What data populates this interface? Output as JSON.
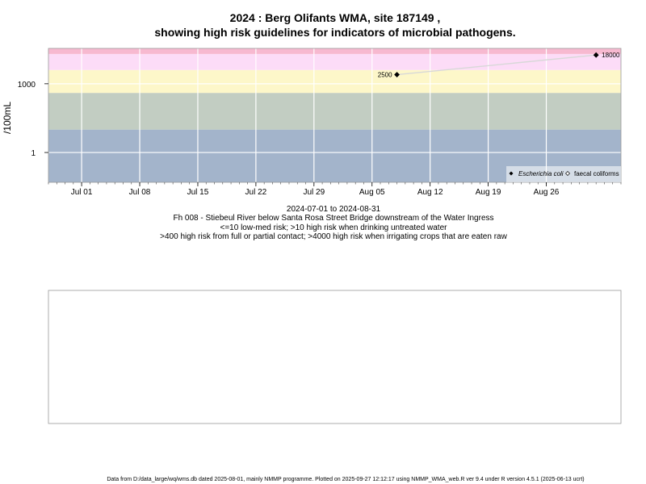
{
  "title_line1": "2024 : Berg Olifants WMA, site 187149 ,",
  "title_line2": "showing high risk guidelines for indicators of microbial pathogens.",
  "subtitle": {
    "date_range": "2024-07-01 to 2024-08-31",
    "site": "Fh 008 - Stiebeul River below Santa Rosa Street Bridge downstream of the Water Ingress",
    "guide1": "<=10 low-med risk; >10 high risk when drinking untreated water",
    "guide2": ">400 high risk from full or partial contact; >4000 high risk when irrigating crops that are eaten raw"
  },
  "footer": "Data from D:/data_large/wq/wms.db dated 2025-08-01, mainly NMMP programme. Plotted on 2025-09-27 12:12:17 using NMMP_WMA_web.R ver 9.4 under R version 4.5.1 (2025-06-13 ucrt)",
  "colors": {
    "band_low": "#a3b4cb",
    "band_lowmed": "#c2cdc2",
    "band_high": "#fdf7c9",
    "band_veryhigh": "#fcdcf7",
    "band_top": "#f7b9d0",
    "series_line": "#d8d8d8",
    "grid": "#ffffff"
  },
  "chart_data": {
    "type": "scatter",
    "ylabel": "/100mL",
    "y_scale": "log10",
    "ylim": [
      0.05,
      35000
    ],
    "xlim": [
      "2024-06-27",
      "2024-09-04"
    ],
    "x_ticks": [
      {
        "date": "2024-07-01",
        "label": "Jul 01"
      },
      {
        "date": "2024-07-08",
        "label": "Jul 08"
      },
      {
        "date": "2024-07-15",
        "label": "Jul 15"
      },
      {
        "date": "2024-07-22",
        "label": "Jul 22"
      },
      {
        "date": "2024-07-29",
        "label": "Jul 29"
      },
      {
        "date": "2024-08-05",
        "label": "Aug 05"
      },
      {
        "date": "2024-08-12",
        "label": "Aug 12"
      },
      {
        "date": "2024-08-19",
        "label": "Aug 19"
      },
      {
        "date": "2024-08-26",
        "label": "Aug 26"
      }
    ],
    "y_ticks": [
      {
        "value": 1,
        "label": "1"
      },
      {
        "value": 1000,
        "label": "1000"
      }
    ],
    "bands": [
      {
        "from": 0.05,
        "to": 10,
        "color_key": "band_low"
      },
      {
        "from": 10,
        "to": 400,
        "color_key": "band_lowmed"
      },
      {
        "from": 400,
        "to": 4000,
        "color_key": "band_high"
      },
      {
        "from": 4000,
        "to": 20000,
        "color_key": "band_veryhigh"
      },
      {
        "from": 20000,
        "to": 35000,
        "color_key": "band_top"
      }
    ],
    "series": [
      {
        "name": "Escherichia coli",
        "marker": "filled-diamond",
        "points": [
          {
            "date": "2024-08-08",
            "value": 2500,
            "label": "2500"
          },
          {
            "date": "2024-09-01",
            "value": 18000,
            "label": "18000"
          }
        ]
      },
      {
        "name": "faecal coliforms",
        "marker": "open-diamond",
        "points": []
      }
    ],
    "legend_position": "bottom-right",
    "grid": true
  }
}
